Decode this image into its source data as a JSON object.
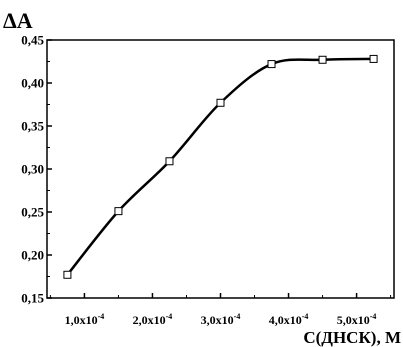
{
  "chart_data": {
    "type": "line",
    "title": "",
    "ylabel": "ΔA",
    "xlabel": "C(ДНСК), M",
    "x_scale_unit": "10^-4",
    "xlim": [
      0.45,
      5.55
    ],
    "ylim": [
      0.15,
      0.45
    ],
    "x_ticks": [
      {
        "value": 1.0,
        "mantissa": "1,0x10",
        "exponent": "-4"
      },
      {
        "value": 2.0,
        "mantissa": "2,0x10",
        "exponent": "-4"
      },
      {
        "value": 3.0,
        "mantissa": "3,0x10",
        "exponent": "-4"
      },
      {
        "value": 4.0,
        "mantissa": "4,0x10",
        "exponent": "-4"
      },
      {
        "value": 5.0,
        "mantissa": "5,0x10",
        "exponent": "-4"
      }
    ],
    "y_ticks": [
      {
        "value": 0.15,
        "label": "0,15"
      },
      {
        "value": 0.2,
        "label": "0,20"
      },
      {
        "value": 0.25,
        "label": "0,25"
      },
      {
        "value": 0.3,
        "label": "0,30"
      },
      {
        "value": 0.35,
        "label": "0,35"
      },
      {
        "value": 0.4,
        "label": "0,40"
      },
      {
        "value": 0.45,
        "label": "0,45"
      }
    ],
    "series": [
      {
        "marker": "open-square",
        "x": [
          0.75,
          1.5,
          2.25,
          3.0,
          3.75,
          4.5,
          5.25
        ],
        "y": [
          0.177,
          0.251,
          0.309,
          0.377,
          0.422,
          0.427,
          0.428
        ]
      }
    ],
    "grid": false,
    "legend": "none"
  }
}
